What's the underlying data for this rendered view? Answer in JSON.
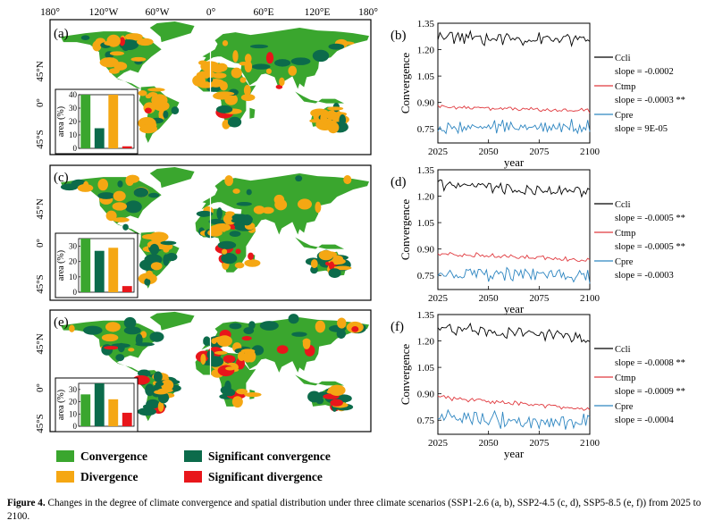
{
  "map_axes": {
    "lon_labels": [
      "180°",
      "120°W",
      "60°W",
      "0°",
      "60°E",
      "120°E",
      "180°"
    ],
    "lat_labels": [
      "45°N",
      "0°",
      "45°S"
    ]
  },
  "colors": {
    "convergence": "#3aa62e",
    "significant_convergence": "#0c6b4b",
    "divergence": "#f5a713",
    "significant_divergence": "#e8161b",
    "ocean": "#ffffff",
    "celi_line": "#000000",
    "ctmp_line": "#e0393e",
    "cpre_line": "#2e86c1"
  },
  "legend": {
    "convergence": "Convergence",
    "significant_convergence": "Significant convergence",
    "divergence": "Divergence",
    "significant_divergence": "Significant divergence"
  },
  "panels": [
    {
      "map_label": "(a)",
      "line_label": "(b)",
      "scenario": "SSP1-2.6"
    },
    {
      "map_label": "(c)",
      "line_label": "(d)",
      "scenario": "SSP2-4.5"
    },
    {
      "map_label": "(e)",
      "line_label": "(f)",
      "scenario": "SSP5-8.5"
    }
  ],
  "chart_data": [
    {
      "type": "bar",
      "panel": "(a) inset",
      "ylabel": "area (%)",
      "ylim": [
        0,
        40
      ],
      "yticks": [
        "0",
        "10",
        "20",
        "30",
        "40"
      ],
      "categories": [
        "Convergence",
        "Significant convergence",
        "Divergence",
        "Significant divergence"
      ],
      "values": [
        43,
        15,
        40,
        1.5
      ]
    },
    {
      "type": "bar",
      "panel": "(c) inset",
      "ylabel": "area (%)",
      "ylim": [
        0,
        35
      ],
      "yticks": [
        "0",
        "10",
        "20",
        "30"
      ],
      "categories": [
        "Convergence",
        "Significant convergence",
        "Divergence",
        "Significant divergence"
      ],
      "values": [
        35,
        27,
        29,
        4
      ]
    },
    {
      "type": "bar",
      "panel": "(e) inset",
      "ylabel": "area (%)",
      "ylim": [
        0,
        35
      ],
      "yticks": [
        "0",
        "10",
        "20",
        "30"
      ],
      "categories": [
        "Convergence",
        "Significant convergence",
        "Divergence",
        "Significant divergence"
      ],
      "values": [
        26,
        38,
        22,
        11
      ]
    },
    {
      "type": "line",
      "panel": "(b)",
      "ylabel": "Convergence",
      "xlabel": "year",
      "xlim": [
        2025,
        2100
      ],
      "ylim": [
        0.67,
        1.35
      ],
      "xticks": [
        "2025",
        "2050",
        "2075",
        "2100"
      ],
      "yticks": [
        "0.75",
        "0.90",
        "1.05",
        "1.20",
        "1.35"
      ],
      "series": [
        {
          "name": "Ccli",
          "slope": "slope = -0.0002",
          "mean": 1.27,
          "amp": 0.03,
          "trend": -0.0002
        },
        {
          "name": "Ctmp",
          "slope": "slope = -0.0003 **",
          "mean": 0.875,
          "amp": 0.01,
          "trend": -0.0003
        },
        {
          "name": "Cpre",
          "slope": "slope = 9E-05",
          "mean": 0.76,
          "amp": 0.03,
          "trend": 9e-05
        }
      ]
    },
    {
      "type": "line",
      "panel": "(d)",
      "ylabel": "Convergence",
      "xlabel": "year",
      "xlim": [
        2025,
        2100
      ],
      "ylim": [
        0.67,
        1.35
      ],
      "xticks": [
        "2025",
        "2050",
        "2075",
        "2100"
      ],
      "yticks": [
        "0.75",
        "0.90",
        "1.05",
        "1.20",
        "1.35"
      ],
      "series": [
        {
          "name": "Ccli",
          "slope": "slope = -0.0005 **",
          "mean": 1.26,
          "amp": 0.025,
          "trend": -0.0005
        },
        {
          "name": "Ctmp",
          "slope": "slope = -0.0005 **",
          "mean": 0.875,
          "amp": 0.01,
          "trend": -0.0005
        },
        {
          "name": "Cpre",
          "slope": "slope = -0.0003",
          "mean": 0.765,
          "amp": 0.035,
          "trend": -0.0003
        }
      ]
    },
    {
      "type": "line",
      "panel": "(f)",
      "ylabel": "Convergence",
      "xlabel": "year",
      "xlim": [
        2025,
        2100
      ],
      "ylim": [
        0.67,
        1.35
      ],
      "xticks": [
        "2025",
        "2050",
        "2075",
        "2100"
      ],
      "yticks": [
        "0.75",
        "0.90",
        "1.05",
        "1.20",
        "1.35"
      ],
      "series": [
        {
          "name": "Ccli",
          "slope": "slope = -0.0008 **",
          "mean": 1.27,
          "amp": 0.03,
          "trend": -0.0008
        },
        {
          "name": "Ctmp",
          "slope": "slope = -0.0009 **",
          "mean": 0.88,
          "amp": 0.01,
          "trend": -0.0009
        },
        {
          "name": "Cpre",
          "slope": "slope = -0.0004",
          "mean": 0.765,
          "amp": 0.04,
          "trend": -0.0004
        }
      ]
    }
  ],
  "caption": {
    "label": "Figure 4.",
    "text": " Changes in the degree of climate convergence and spatial distribution under three climate scenarios (SSP1-2.6 (a, b), SSP2-4.5 (c, d), SSP5-8.5 (e, f)) from 2025 to 2100."
  }
}
